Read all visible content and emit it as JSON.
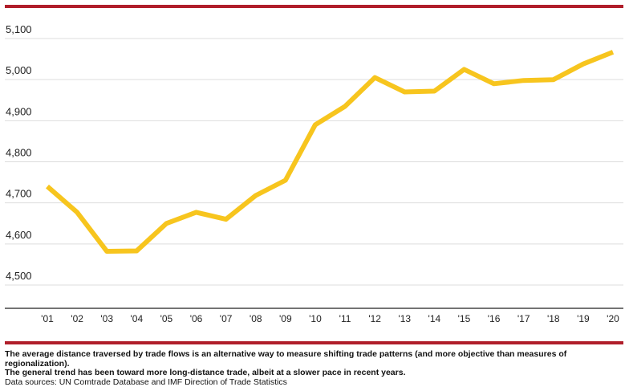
{
  "colors": {
    "line": "#f7c51e",
    "rule": "#b01e2a",
    "grid": "#dddddd",
    "axis": "#222222"
  },
  "footer": {
    "note_line1": "The average distance traversed by trade flows is an alternative way to measure shifting trade patterns (and more objective than measures of regionalization).",
    "note_line2": "The general trend has been toward more long-distance trade, albeit at a slower pace in recent years.",
    "source": "Data sources: UN Comtrade Database and IMF Direction of Trade Statistics"
  },
  "chart_data": {
    "type": "line",
    "title": "",
    "xlabel": "",
    "ylabel": "",
    "categories": [
      "'01",
      "'02",
      "'03",
      "'04",
      "'05",
      "'06",
      "'07",
      "'08",
      "'09",
      "'10",
      "'11",
      "'12",
      "'13",
      "'14",
      "'15",
      "'16",
      "'17",
      "'18",
      "'19",
      "'20"
    ],
    "series": [
      {
        "values": [
          4740,
          4677,
          4582,
          4583,
          4650,
          4677,
          4660,
          4718,
          4755,
          4890,
          4935,
          5005,
          4970,
          4972,
          5025,
          4990,
          4998,
          5000,
          5038,
          5067
        ]
      }
    ],
    "yticks": [
      4500,
      4600,
      4700,
      4800,
      4900,
      5000,
      5100
    ],
    "ytick_labels": [
      "4,500",
      "4,600",
      "4,700",
      "4,800",
      "4,900",
      "5,000",
      "5,100"
    ],
    "ylim": [
      4430,
      5135
    ],
    "grid": true,
    "legend": "none"
  }
}
